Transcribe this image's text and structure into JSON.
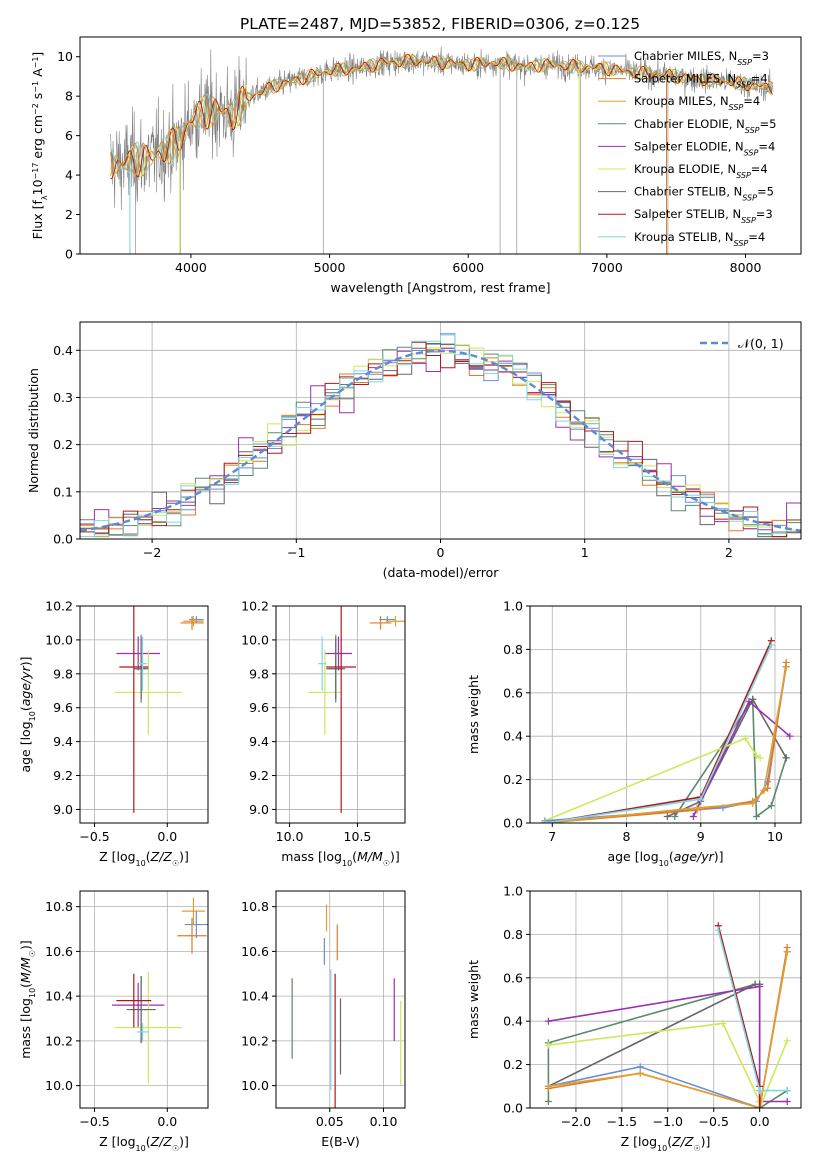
{
  "figure": {
    "title": "PLATE=2487, MJD=53852, FIBERID=0306, z=0.125"
  },
  "colors": {
    "chabrier_miles": "#6a8fd8",
    "salpeter_miles": "#e07b2a",
    "kroupa_miles": "#e0a030",
    "chabrier_elodie": "#5a8a6a",
    "salpeter_elodie": "#9b30b0",
    "kroupa_elodie": "#cfe85a",
    "chabrier_stelib": "#666666",
    "salpeter_stelib": "#b01818",
    "kroupa_stelib": "#7fd6e0",
    "normal_curve": "#5b8bd6",
    "grid": "#b0b0b0"
  },
  "chart_data": [
    {
      "id": "spectrum",
      "type": "line",
      "xlabel": "wavelength [Angstrom, rest frame]",
      "ylabel": "Flux [fλ10⁻¹⁷ erg cm⁻² s⁻¹ A⁻¹]",
      "xlim": [
        3200,
        8400
      ],
      "ylim": [
        0,
        11
      ],
      "xticks": [
        4000,
        5000,
        6000,
        7000,
        8000
      ],
      "yticks": [
        0,
        2,
        4,
        6,
        8,
        10
      ],
      "grid": false,
      "legend_position": "right",
      "continuum_model": {
        "x": [
          3400,
          3500,
          3600,
          3700,
          3800,
          3900,
          4000,
          4100,
          4200,
          4300,
          4400,
          4600,
          4800,
          5000,
          5200,
          5400,
          5600,
          5800,
          6000,
          6200,
          6400,
          6600,
          6800,
          7000,
          7200,
          7400,
          7600,
          7800,
          8000,
          8200
        ],
        "y": [
          4.6,
          4.5,
          4.8,
          4.8,
          5.3,
          5.6,
          6.8,
          7.2,
          7.3,
          7.0,
          7.9,
          8.5,
          8.9,
          9.3,
          9.4,
          9.7,
          9.8,
          9.7,
          9.6,
          9.7,
          9.5,
          9.6,
          9.5,
          9.4,
          9.2,
          9.1,
          8.9,
          8.8,
          8.6,
          8.4
        ]
      },
      "legend": [
        {
          "label": "Chabrier MILES, N",
          "sub": "SSP",
          "tail": "=3"
        },
        {
          "label": "Salpeter MILES, N",
          "sub": "SSP",
          "tail": "=4"
        },
        {
          "label": "Kroupa MILES, N",
          "sub": "SSP",
          "tail": "=4"
        },
        {
          "label": "Chabrier ELODIE, N",
          "sub": "SSP",
          "tail": "=5"
        },
        {
          "label": "Salpeter ELODIE, N",
          "sub": "SSP",
          "tail": "=4"
        },
        {
          "label": "Kroupa ELODIE, N",
          "sub": "SSP",
          "tail": "=4"
        },
        {
          "label": "Chabrier STELIB, N",
          "sub": "SSP",
          "tail": "=5"
        },
        {
          "label": "Salpeter STELIB, N",
          "sub": "SSP",
          "tail": "=3"
        },
        {
          "label": "Kroupa STELIB, N",
          "sub": "SSP",
          "tail": "=4"
        }
      ]
    },
    {
      "id": "residuals",
      "type": "line",
      "xlabel": "(data-model)/error",
      "ylabel": "Normed distribution",
      "xlim": [
        -2.5,
        2.5
      ],
      "ylim": [
        0,
        0.46
      ],
      "xticks": [
        -2,
        -1,
        0,
        1,
        2
      ],
      "yticks": [
        0.0,
        0.1,
        0.2,
        0.3,
        0.4
      ],
      "grid": true,
      "legend_position": "top-right",
      "legend_label": "𝒩(0, 1)",
      "histogram_bin_width": 0.1
    },
    {
      "id": "age_vs_z",
      "type": "scatter",
      "xlabel": "Z [log₁₀(Z/Z☉)]",
      "ylabel": "age  [log₁₀(age/yr)]",
      "xlim": [
        -0.6,
        0.28
      ],
      "ylim": [
        8.92,
        10.2
      ],
      "xticks": [
        -0.5,
        0.0
      ],
      "yticks": [
        9.0,
        9.2,
        9.4,
        9.6,
        9.8,
        10.0,
        10.2
      ],
      "grid": true,
      "points": [
        {
          "series": "chabrier_miles",
          "x": 0.2,
          "xerr": 0.05,
          "y": 10.12,
          "yerr": 0.02
        },
        {
          "series": "salpeter_miles",
          "x": 0.17,
          "xerr": 0.08,
          "y": 10.1,
          "yerr": 0.04
        },
        {
          "series": "kroupa_miles",
          "x": 0.18,
          "xerr": 0.07,
          "y": 10.11,
          "yerr": 0.03
        },
        {
          "series": "chabrier_elodie",
          "x": -0.18,
          "xerr": 0.04,
          "y": 9.83,
          "yerr": 0.2
        },
        {
          "series": "salpeter_elodie",
          "x": -0.2,
          "xerr": 0.15,
          "y": 9.92,
          "yerr": 0.1
        },
        {
          "series": "kroupa_elodie",
          "x": -0.13,
          "xerr": 0.23,
          "y": 9.69,
          "yerr": 0.25
        },
        {
          "series": "chabrier_stelib",
          "x": -0.18,
          "xerr": 0.05,
          "y": 9.83,
          "yerr": 0.18
        },
        {
          "series": "salpeter_stelib",
          "x": -0.23,
          "xerr": 0.1,
          "y": 9.84,
          "yerr": 0.86
        },
        {
          "series": "kroupa_stelib",
          "x": -0.17,
          "xerr": 0.03,
          "y": 9.86,
          "yerr": 0.16
        }
      ]
    },
    {
      "id": "age_vs_mass",
      "type": "scatter",
      "xlabel": "mass [log₁₀(M/M☉)]",
      "ylabel": "",
      "xlim": [
        9.9,
        10.85
      ],
      "ylim": [
        8.92,
        10.2
      ],
      "xticks": [
        10.0,
        10.5
      ],
      "yticks": [
        9.0,
        9.2,
        9.4,
        9.6,
        9.8,
        10.0,
        10.2
      ],
      "grid": true,
      "points": [
        {
          "series": "chabrier_miles",
          "x": 10.72,
          "xerr": 0.06,
          "y": 10.12,
          "yerr": 0.02
        },
        {
          "series": "salpeter_miles",
          "x": 10.67,
          "xerr": 0.08,
          "y": 10.1,
          "yerr": 0.04
        },
        {
          "series": "kroupa_miles",
          "x": 10.78,
          "xerr": 0.07,
          "y": 10.11,
          "yerr": 0.03
        },
        {
          "series": "chabrier_elodie",
          "x": 10.34,
          "xerr": 0.05,
          "y": 9.83,
          "yerr": 0.2
        },
        {
          "series": "salpeter_elodie",
          "x": 10.36,
          "xerr": 0.1,
          "y": 9.92,
          "yerr": 0.1
        },
        {
          "series": "kroupa_elodie",
          "x": 10.26,
          "xerr": 0.12,
          "y": 9.69,
          "yerr": 0.25
        },
        {
          "series": "chabrier_stelib",
          "x": 10.34,
          "xerr": 0.07,
          "y": 9.83,
          "yerr": 0.18
        },
        {
          "series": "salpeter_stelib",
          "x": 10.38,
          "xerr": 0.11,
          "y": 9.84,
          "yerr": 0.86
        },
        {
          "series": "kroupa_stelib",
          "x": 10.24,
          "xerr": 0.03,
          "y": 9.86,
          "yerr": 0.16
        }
      ]
    },
    {
      "id": "weight_vs_age",
      "type": "line",
      "xlabel": "age  [log₁₀(age/yr)]",
      "ylabel": "mass weight",
      "xlim": [
        6.7,
        10.35
      ],
      "ylim": [
        0,
        1.0
      ],
      "xticks": [
        7,
        8,
        9,
        10
      ],
      "yticks": [
        0.0,
        0.2,
        0.4,
        0.6,
        0.8,
        1.0
      ],
      "grid": true,
      "series": [
        {
          "name": "chabrier_elodie",
          "x": [
            8.65,
            9.7,
            9.75,
            9.95,
            10.15
          ],
          "y": [
            0.03,
            0.57,
            0.03,
            0.08,
            0.3
          ]
        },
        {
          "name": "chabrier_stelib",
          "x": [
            8.55,
            9.0,
            9.7,
            10.15
          ],
          "y": [
            0.03,
            0.1,
            0.57,
            0.3
          ]
        },
        {
          "name": "salpeter_elodie",
          "x": [
            8.9,
            9.65,
            10.2
          ],
          "y": [
            0.03,
            0.56,
            0.4
          ]
        },
        {
          "name": "kroupa_elodie",
          "x": [
            6.9,
            9.6,
            9.75,
            9.8
          ],
          "y": [
            0.01,
            0.39,
            0.31,
            0.3
          ]
        },
        {
          "name": "chabrier_miles",
          "x": [
            6.9,
            9.3,
            9.75,
            9.9,
            10.15
          ],
          "y": [
            0.01,
            0.07,
            0.1,
            0.19,
            0.72
          ]
        },
        {
          "name": "salpeter_miles",
          "x": [
            6.9,
            8.95,
            9.7,
            9.9,
            10.15
          ],
          "y": [
            0.0,
            0.06,
            0.1,
            0.16,
            0.74
          ]
        },
        {
          "name": "kroupa_miles",
          "x": [
            6.9,
            8.95,
            9.7,
            9.85,
            10.15
          ],
          "y": [
            0.0,
            0.07,
            0.09,
            0.15,
            0.72
          ]
        },
        {
          "name": "salpeter_stelib",
          "x": [
            6.9,
            9.0,
            9.95
          ],
          "y": [
            0.0,
            0.12,
            0.84
          ]
        },
        {
          "name": "kroupa_stelib",
          "x": [
            6.9,
            9.0,
            9.95
          ],
          "y": [
            0.0,
            0.11,
            0.82
          ]
        }
      ]
    },
    {
      "id": "mass_vs_z",
      "type": "scatter",
      "xlabel": "Z [log₁₀(Z/Z☉)]",
      "ylabel": "mass [log₁₀(M/M☉)]",
      "xlim": [
        -0.6,
        0.28
      ],
      "ylim": [
        9.9,
        10.87
      ],
      "xticks": [
        -0.5,
        0.0
      ],
      "yticks": [
        10.0,
        10.2,
        10.4,
        10.6,
        10.8
      ],
      "grid": true,
      "points": [
        {
          "series": "chabrier_miles",
          "x": 0.2,
          "xerr": 0.08,
          "y": 10.72,
          "yerr": 0.06
        },
        {
          "series": "salpeter_miles",
          "x": 0.17,
          "xerr": 0.1,
          "y": 10.67,
          "yerr": 0.08
        },
        {
          "series": "kroupa_miles",
          "x": 0.18,
          "xerr": 0.08,
          "y": 10.78,
          "yerr": 0.06
        },
        {
          "series": "chabrier_elodie",
          "x": -0.18,
          "xerr": 0.04,
          "y": 10.34,
          "yerr": 0.15
        },
        {
          "series": "salpeter_elodie",
          "x": -0.2,
          "xerr": 0.18,
          "y": 10.36,
          "yerr": 0.1
        },
        {
          "series": "kroupa_elodie",
          "x": -0.13,
          "xerr": 0.23,
          "y": 10.26,
          "yerr": 0.25
        },
        {
          "series": "chabrier_stelib",
          "x": -0.18,
          "xerr": 0.1,
          "y": 10.34,
          "yerr": 0.15
        },
        {
          "series": "salpeter_stelib",
          "x": -0.23,
          "xerr": 0.12,
          "y": 10.38,
          "yerr": 0.12
        },
        {
          "series": "kroupa_stelib",
          "x": -0.17,
          "xerr": 0.04,
          "y": 10.24,
          "yerr": 0.04
        }
      ]
    },
    {
      "id": "mass_vs_ebv",
      "type": "scatter",
      "xlabel": "E(B-V)",
      "ylabel": "",
      "xlim": [
        0.0,
        0.12
      ],
      "ylim": [
        9.9,
        10.87
      ],
      "xticks": [
        0.05,
        0.1
      ],
      "yticks": [
        10.0,
        10.2,
        10.4,
        10.6,
        10.8
      ],
      "grid": true,
      "points": [
        {
          "series": "chabrier_elodie",
          "x": 0.015,
          "y": 10.3,
          "yerr": 0.18
        },
        {
          "series": "chabrier_miles",
          "x": 0.045,
          "y": 10.6,
          "yerr": 0.06
        },
        {
          "series": "kroupa_miles",
          "x": 0.047,
          "y": 10.75,
          "yerr": 0.06
        },
        {
          "series": "kroupa_stelib",
          "x": 0.051,
          "y": 10.25,
          "yerr": 0.27
        },
        {
          "series": "salpeter_stelib",
          "x": 0.055,
          "y": 10.2,
          "yerr": 0.3
        },
        {
          "series": "salpeter_miles",
          "x": 0.057,
          "y": 10.64,
          "yerr": 0.08
        },
        {
          "series": "chabrier_stelib",
          "x": 0.06,
          "y": 10.22,
          "yerr": 0.17
        },
        {
          "series": "salpeter_elodie",
          "x": 0.11,
          "y": 10.34,
          "yerr": 0.14
        },
        {
          "series": "kroupa_elodie",
          "x": 0.116,
          "y": 10.19,
          "yerr": 0.19
        }
      ]
    },
    {
      "id": "weight_vs_z",
      "type": "line",
      "xlabel": "Z [log₁₀(Z/Z☉)]",
      "ylabel": "mass weight",
      "xlim": [
        -2.5,
        0.45
      ],
      "ylim": [
        0,
        1.0
      ],
      "xticks": [
        -2.0,
        -1.5,
        -1.0,
        -0.5,
        0.0
      ],
      "yticks": [
        0.0,
        0.2,
        0.4,
        0.6,
        0.8,
        1.0
      ],
      "grid": true,
      "series": [
        {
          "name": "chabrier_elodie",
          "x": [
            -2.3,
            -2.3,
            -0.05,
            0.0,
            0.0,
            0.3
          ],
          "y": [
            0.03,
            0.3,
            0.57,
            0.57,
            0.0,
            0.08
          ]
        },
        {
          "name": "chabrier_stelib",
          "x": [
            -2.3,
            -0.05,
            0.0,
            0.0
          ],
          "y": [
            0.1,
            0.57,
            0.57,
            0.0
          ]
        },
        {
          "name": "salpeter_elodie",
          "x": [
            -2.3,
            0.0,
            0.0,
            0.3
          ],
          "y": [
            0.4,
            0.56,
            0.03,
            0.03
          ]
        },
        {
          "name": "kroupa_elodie",
          "x": [
            -2.3,
            -2.3,
            -0.4,
            0.0,
            0.0,
            0.3
          ],
          "y": [
            0.29,
            0.29,
            0.39,
            0.03,
            0.0,
            0.31
          ]
        },
        {
          "name": "chabrier_miles",
          "x": [
            -2.3,
            -1.3,
            0.0,
            0.3
          ],
          "y": [
            0.1,
            0.19,
            0.0,
            0.72
          ]
        },
        {
          "name": "salpeter_miles",
          "x": [
            -2.3,
            -1.3,
            0.0,
            0.3
          ],
          "y": [
            0.09,
            0.16,
            0.0,
            0.74
          ]
        },
        {
          "name": "kroupa_miles",
          "x": [
            -2.3,
            -1.3,
            0.0,
            0.3
          ],
          "y": [
            0.1,
            0.16,
            0.0,
            0.72
          ]
        },
        {
          "name": "salpeter_stelib",
          "x": [
            -0.45,
            0.0,
            0.0
          ],
          "y": [
            0.84,
            0.1,
            0.0
          ]
        },
        {
          "name": "kroupa_stelib",
          "x": [
            -0.45,
            0.0,
            0.3
          ],
          "y": [
            0.82,
            0.08,
            0.08
          ]
        }
      ]
    }
  ]
}
